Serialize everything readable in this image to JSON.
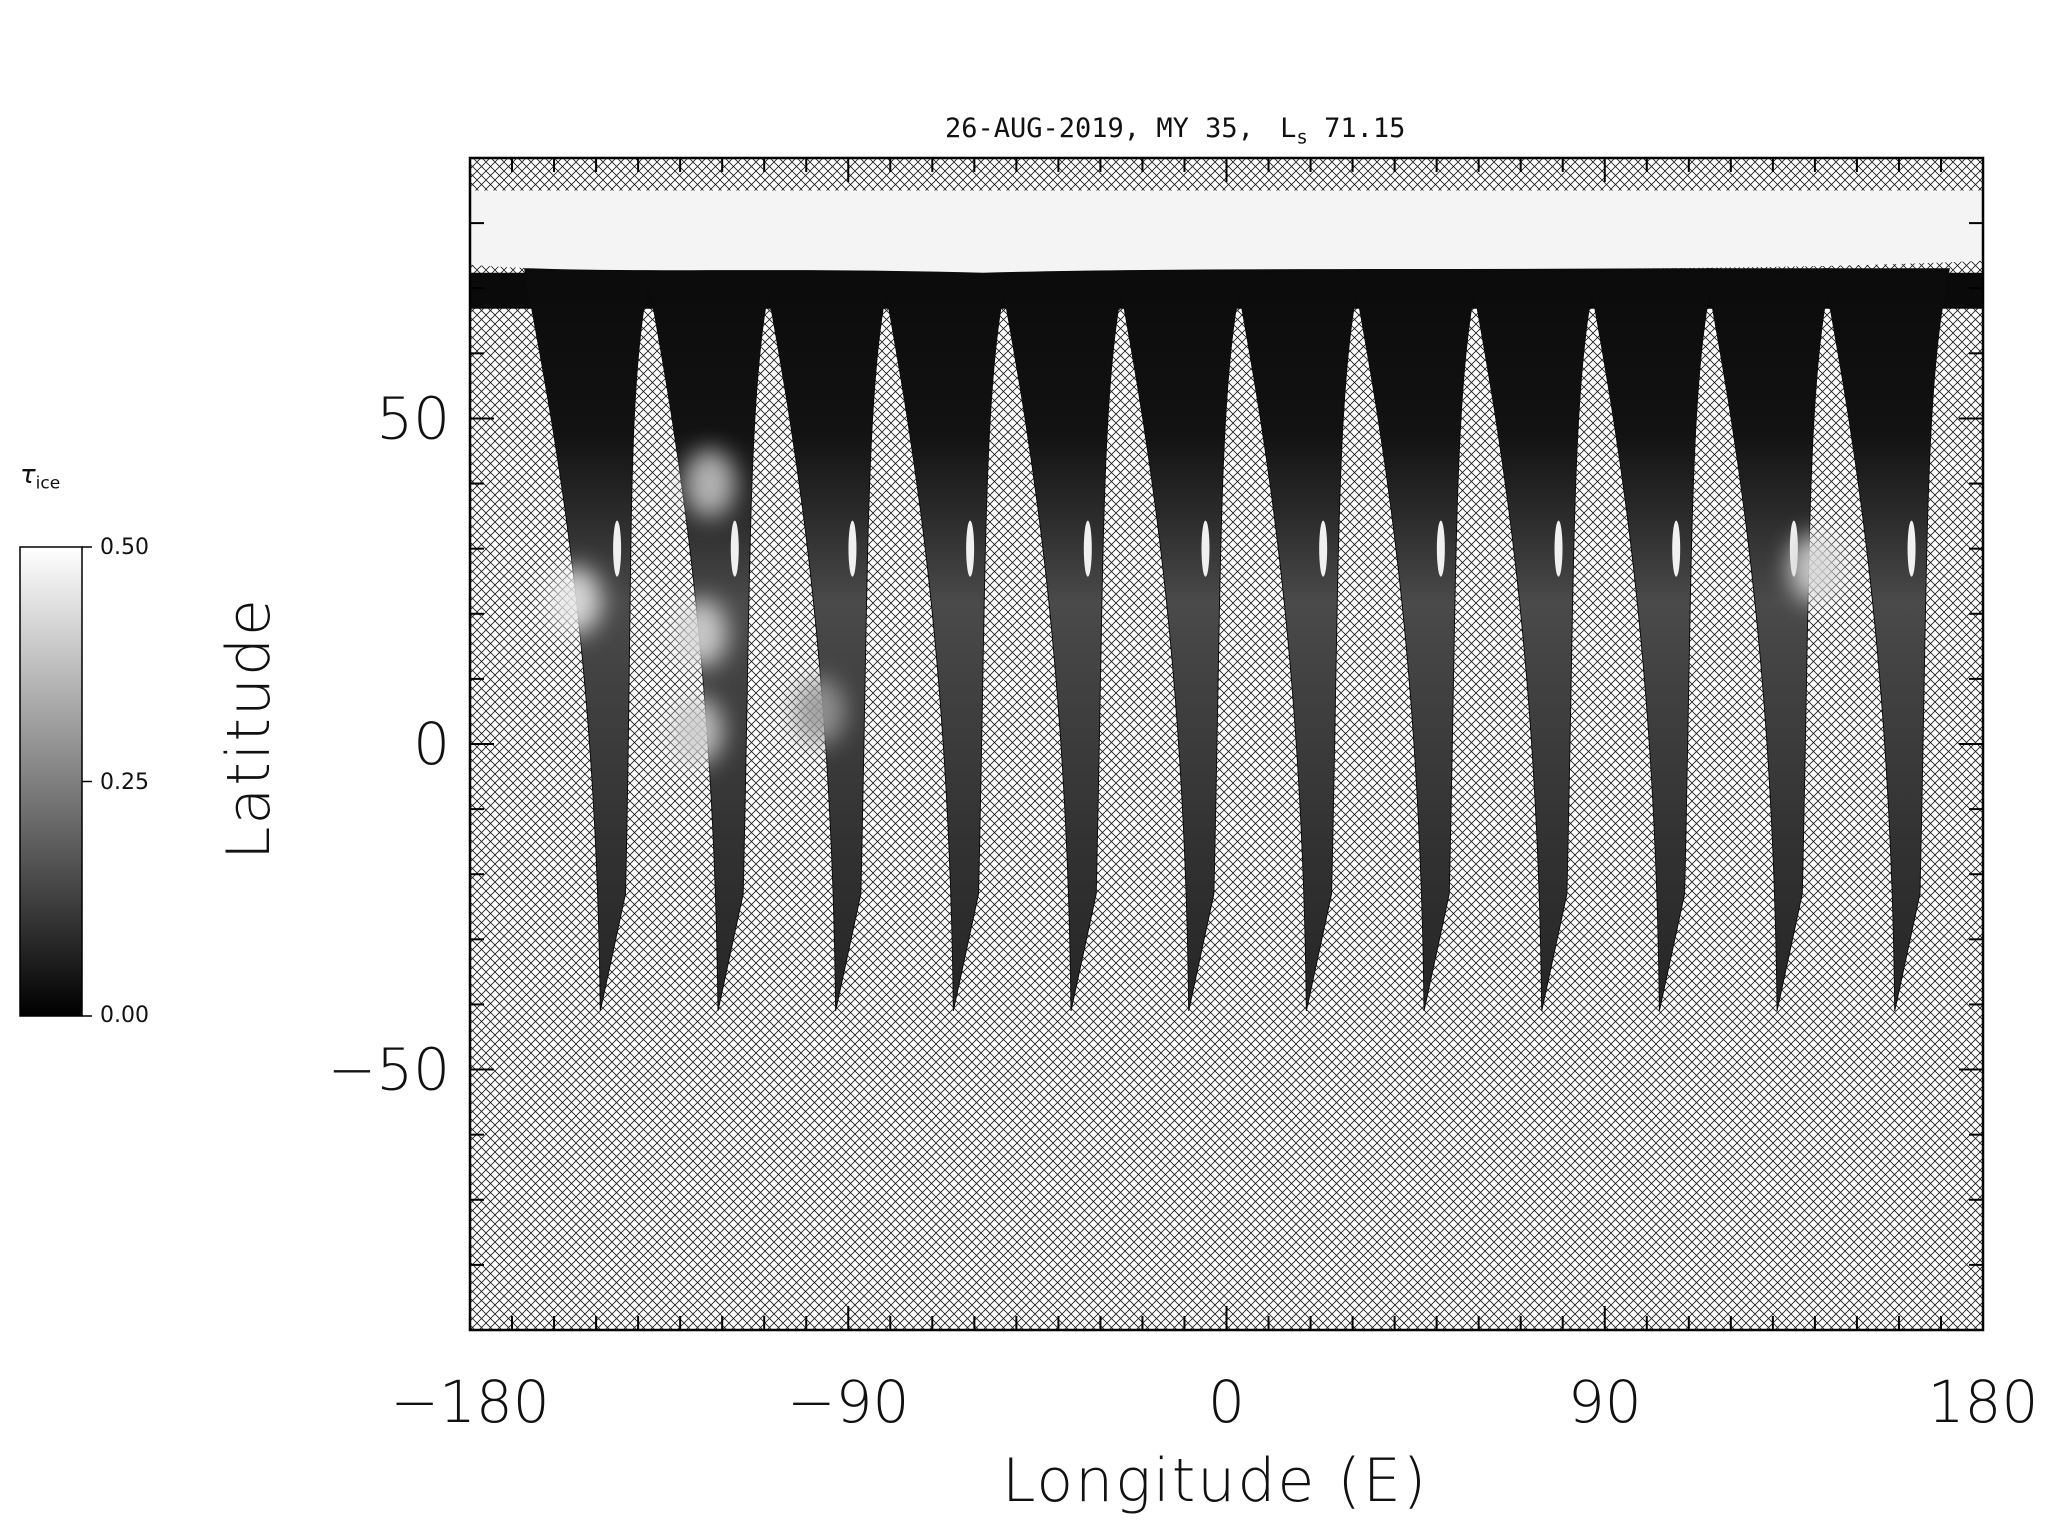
{
  "chart_data": {
    "type": "heatmap",
    "title": {
      "date": "26-AUG-2019,",
      "mars_year": "MY 35,",
      "ls_symbol": "L",
      "ls_subscript": "s",
      "ls_value": "71.15"
    },
    "xlabel": "Longitude (E)",
    "ylabel": "Latitude",
    "xlim": [
      -180,
      180
    ],
    "ylim": [
      -90,
      90
    ],
    "x_ticks": [
      -180,
      -90,
      0,
      90,
      180
    ],
    "x_tick_labels": [
      "−180",
      "−90",
      "0",
      "90",
      "180"
    ],
    "y_ticks": [
      -50,
      0,
      50
    ],
    "y_tick_labels": [
      "−50",
      "0",
      "50"
    ],
    "x_minor_step": 10,
    "y_minor_step": 10,
    "no_data_fill": "crosshatch",
    "colorbar": {
      "label_symbol": "τ",
      "label_subscript": "ice",
      "range": [
        0.0,
        0.5
      ],
      "ticks": [
        "0.50",
        "0.25",
        "0.00"
      ],
      "colormap": "grayscale",
      "low_color": "#000000",
      "high_color": "#ffffff"
    },
    "polar_cap": {
      "lat_min": 73,
      "lat_max": 85,
      "value": 0.5
    },
    "swaths": [
      {
        "lon_top": -167,
        "lon_bottom": -147,
        "lat_top": 73,
        "lat_bottom": -41
      },
      {
        "lon_top": -138,
        "lon_bottom": -119,
        "lat_top": 73,
        "lat_bottom": -41
      },
      {
        "lon_top": -110,
        "lon_bottom": -91,
        "lat_top": 73,
        "lat_bottom": -41
      },
      {
        "lon_top": -82,
        "lon_bottom": -63,
        "lat_top": 73,
        "lat_bottom": -41
      },
      {
        "lon_top": -54,
        "lon_bottom": -35,
        "lat_top": 73,
        "lat_bottom": -41
      },
      {
        "lon_top": -26,
        "lon_bottom": -7,
        "lat_top": 73,
        "lat_bottom": -41
      },
      {
        "lon_top": 2,
        "lon_bottom": 21,
        "lat_top": 73,
        "lat_bottom": -41
      },
      {
        "lon_top": 30,
        "lon_bottom": 49,
        "lat_top": 73,
        "lat_bottom": -41
      },
      {
        "lon_top": 58,
        "lon_bottom": 77,
        "lat_top": 73,
        "lat_bottom": -41
      },
      {
        "lon_top": 86,
        "lon_bottom": 105,
        "lat_top": 73,
        "lat_bottom": -41
      },
      {
        "lon_top": 114,
        "lon_bottom": 133,
        "lat_top": 73,
        "lat_bottom": -41
      },
      {
        "lon_top": 142,
        "lon_bottom": 161,
        "lat_top": 73,
        "lat_bottom": -41
      }
    ],
    "bright_clouds": [
      {
        "lon": -155,
        "lat": 22,
        "value": 0.45
      },
      {
        "lon": -125,
        "lat": 17,
        "value": 0.42
      },
      {
        "lon": -126,
        "lat": 2,
        "value": 0.4
      },
      {
        "lon": -123,
        "lat": 40,
        "value": 0.38
      },
      {
        "lon": -97,
        "lat": 5,
        "value": 0.3
      },
      {
        "lon": 140,
        "lat": 27,
        "value": 0.42
      }
    ]
  }
}
